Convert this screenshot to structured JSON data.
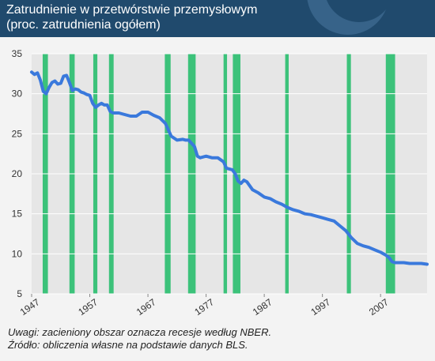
{
  "header": {
    "title": "Zatrudnienie w przetwórstwie przemysłowym",
    "subtitle": "(proc. zatrudnienia ogółem)"
  },
  "footer": {
    "note": "Uwagi: zacieniony obszar oznacza recesje według NBER.",
    "source": "Źródło: obliczenia własne na podstawie danych BLS."
  },
  "colors": {
    "header_bg": "#204a6d",
    "line": "#3a79dc",
    "recession": "#3cc27a",
    "grid": "#ffffff",
    "plot_bg": "#e6e6e6"
  },
  "chart_data": {
    "type": "line",
    "title": "Zatrudnienie w przetwórstwie przemysłowym",
    "subtitle": "(proc. zatrudnienia ogółem)",
    "xlim": [
      1947,
      2015
    ],
    "ylim": [
      5,
      35
    ],
    "yticks": [
      5,
      10,
      15,
      20,
      25,
      30,
      35
    ],
    "xticks": [
      1947,
      1957,
      1967,
      1977,
      1987,
      1997,
      2007
    ],
    "grid": "horizontal",
    "legend": "none",
    "recessions": [
      [
        1948.9,
        1949.8
      ],
      [
        1953.5,
        1954.4
      ],
      [
        1957.6,
        1958.3
      ],
      [
        1960.3,
        1961.1
      ],
      [
        1969.9,
        1970.9
      ],
      [
        1973.9,
        1975.2
      ],
      [
        1980.0,
        1980.6
      ],
      [
        1981.6,
        1982.9
      ],
      [
        1990.6,
        1991.2
      ],
      [
        2001.2,
        2001.9
      ],
      [
        2007.9,
        2009.5
      ]
    ],
    "series": [
      {
        "x": [
          1947,
          1947.5,
          1948,
          1948.5,
          1949,
          1949.5,
          1950,
          1950.5,
          1951,
          1951.5,
          1952,
          1952.5,
          1953,
          1953.5,
          1954,
          1954.5,
          1955,
          1955.5,
          1956,
          1956.5,
          1957,
          1957.5,
          1958,
          1958.5,
          1959,
          1959.5,
          1960,
          1960.5,
          1961,
          1962,
          1963,
          1964,
          1965,
          1966,
          1967,
          1968,
          1969,
          1970,
          1971,
          1972,
          1973,
          1973.5,
          1974,
          1975,
          1975.5,
          1976,
          1977,
          1978,
          1979,
          1980,
          1980.5,
          1981,
          1981.5,
          1982,
          1982.5,
          1983,
          1983.5,
          1984,
          1985,
          1986,
          1987,
          1988,
          1989,
          1990,
          1991,
          1992,
          1993,
          1994,
          1995,
          1996,
          1997,
          1998,
          1999,
          2000,
          2001,
          2002,
          2003,
          2004,
          2005,
          2006,
          2007,
          2008,
          2008.5,
          2009,
          2009.5,
          2010,
          2011,
          2012,
          2013,
          2014,
          2015
        ],
        "y": [
          32.7,
          32.4,
          32.6,
          31.7,
          30.3,
          30.0,
          30.8,
          31.4,
          31.6,
          31.2,
          31.3,
          32.2,
          32.3,
          31.4,
          30.4,
          30.6,
          30.5,
          30.2,
          30.1,
          29.9,
          29.8,
          28.8,
          28.3,
          28.6,
          28.8,
          28.6,
          28.6,
          27.8,
          27.6,
          27.6,
          27.4,
          27.2,
          27.2,
          27.7,
          27.7,
          27.3,
          27.0,
          26.3,
          24.7,
          24.2,
          24.3,
          24.2,
          24.2,
          23.4,
          22.2,
          22.0,
          22.2,
          22.0,
          22.0,
          21.5,
          20.7,
          20.6,
          20.5,
          20.0,
          19.1,
          18.8,
          19.2,
          19.0,
          18.0,
          17.6,
          17.1,
          16.9,
          16.5,
          16.2,
          15.8,
          15.5,
          15.3,
          15.0,
          14.9,
          14.7,
          14.5,
          14.3,
          14.1,
          13.5,
          12.9,
          12.0,
          11.3,
          11.0,
          10.8,
          10.5,
          10.2,
          9.8,
          9.5,
          9.0,
          8.9,
          8.9,
          8.9,
          8.8,
          8.8,
          8.8,
          8.7
        ]
      }
    ]
  }
}
